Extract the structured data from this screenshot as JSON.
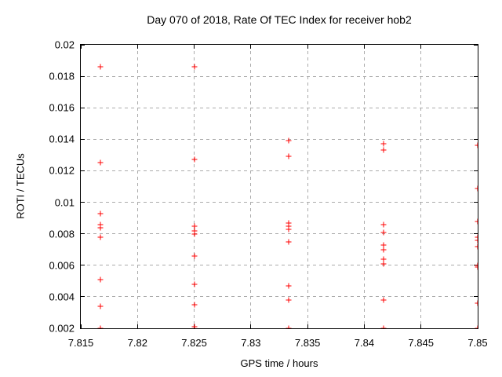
{
  "title": "Day 070 of 2018, Rate Of TEC Index for receiver hob2",
  "xlabel": "GPS time / hours",
  "ylabel": "ROTI / TECUs",
  "colors": {
    "marker": "#ff0000",
    "grid": "#ababab",
    "axis": "#000000",
    "background": "#ffffff",
    "text": "#000000"
  },
  "chart_data": {
    "type": "scatter",
    "marker_style": "plus",
    "grid": "dashed",
    "legend": "none",
    "xlim": [
      7.815,
      7.85
    ],
    "ylim": [
      0.002,
      0.02
    ],
    "xticks": [
      {
        "value": 7.815,
        "label": "7.815"
      },
      {
        "value": 7.82,
        "label": "7.82"
      },
      {
        "value": 7.825,
        "label": "7.825"
      },
      {
        "value": 7.83,
        "label": "7.83"
      },
      {
        "value": 7.835,
        "label": "7.835"
      },
      {
        "value": 7.84,
        "label": "7.84"
      },
      {
        "value": 7.845,
        "label": "7.845"
      },
      {
        "value": 7.85,
        "label": "7.85"
      }
    ],
    "yticks": [
      {
        "value": 0.002,
        "label": "0.002"
      },
      {
        "value": 0.004,
        "label": "0.004"
      },
      {
        "value": 0.006,
        "label": "0.006"
      },
      {
        "value": 0.008,
        "label": "0.008"
      },
      {
        "value": 0.01,
        "label": "0.01"
      },
      {
        "value": 0.012,
        "label": "0.012"
      },
      {
        "value": 0.014,
        "label": "0.014"
      },
      {
        "value": 0.016,
        "label": "0.016"
      },
      {
        "value": 0.018,
        "label": "0.018"
      },
      {
        "value": 0.02,
        "label": "0.02"
      }
    ],
    "points": [
      [
        7.8167,
        0.0186
      ],
      [
        7.8167,
        0.0125
      ],
      [
        7.8167,
        0.0093
      ],
      [
        7.8167,
        0.0086
      ],
      [
        7.8167,
        0.0084
      ],
      [
        7.8167,
        0.0078
      ],
      [
        7.8167,
        0.0051
      ],
      [
        7.8167,
        0.0034
      ],
      [
        7.8167,
        0.002
      ],
      [
        7.825,
        0.0186
      ],
      [
        7.825,
        0.0127
      ],
      [
        7.825,
        0.0085
      ],
      [
        7.825,
        0.0082
      ],
      [
        7.825,
        0.008
      ],
      [
        7.825,
        0.0066
      ],
      [
        7.825,
        0.0048
      ],
      [
        7.825,
        0.0035
      ],
      [
        7.825,
        0.0021
      ],
      [
        7.8333,
        0.0139
      ],
      [
        7.8333,
        0.0129
      ],
      [
        7.8333,
        0.0087
      ],
      [
        7.8333,
        0.0085
      ],
      [
        7.8333,
        0.0083
      ],
      [
        7.8333,
        0.0075
      ],
      [
        7.8333,
        0.0047
      ],
      [
        7.8333,
        0.0038
      ],
      [
        7.8333,
        0.002
      ],
      [
        7.8417,
        0.0137
      ],
      [
        7.8417,
        0.0133
      ],
      [
        7.8417,
        0.0086
      ],
      [
        7.8417,
        0.0081
      ],
      [
        7.8417,
        0.0073
      ],
      [
        7.8417,
        0.007
      ],
      [
        7.8417,
        0.0064
      ],
      [
        7.8417,
        0.0061
      ],
      [
        7.8417,
        0.0038
      ],
      [
        7.8417,
        0.002
      ],
      [
        7.85,
        0.0136
      ],
      [
        7.85,
        0.0109
      ],
      [
        7.85,
        0.0088
      ],
      [
        7.85,
        0.0078
      ],
      [
        7.85,
        0.0076
      ],
      [
        7.85,
        0.0072
      ],
      [
        7.85,
        0.006
      ],
      [
        7.85,
        0.0059
      ],
      [
        7.85,
        0.0036
      ],
      [
        7.85,
        0.002
      ]
    ]
  }
}
